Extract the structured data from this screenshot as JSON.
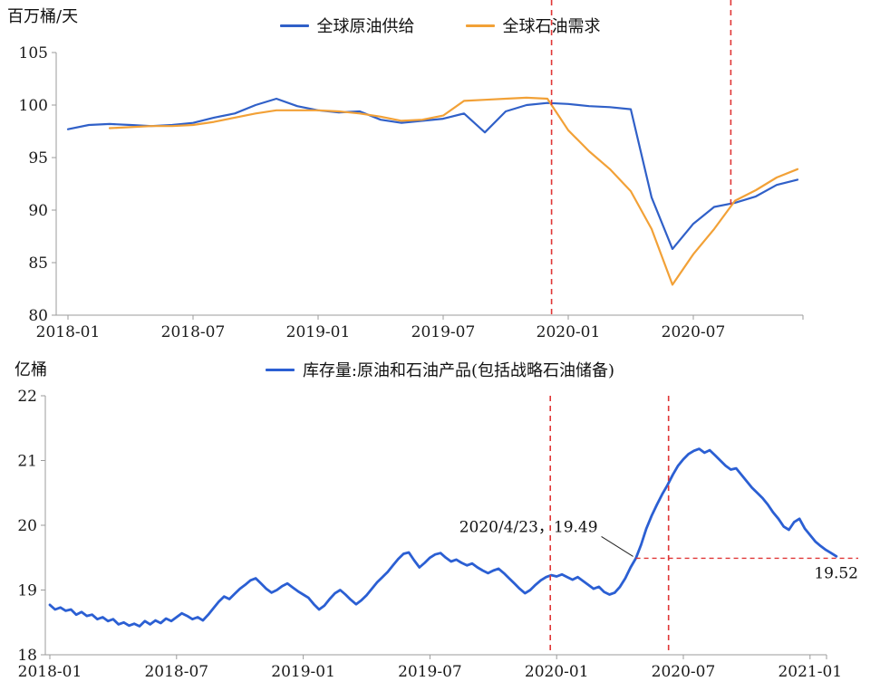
{
  "chart_data": [
    {
      "id": "top",
      "type": "line",
      "title": "",
      "ylabel": "百万桶/天",
      "x_range": [
        0,
        36
      ],
      "y_range": [
        80,
        105
      ],
      "y_ticks": [
        80,
        85,
        90,
        95,
        100,
        105
      ],
      "x_ticks": [
        {
          "m": 0,
          "label": "2018-01"
        },
        {
          "m": 6,
          "label": "2018-07"
        },
        {
          "m": 12,
          "label": "2019-01"
        },
        {
          "m": 18,
          "label": "2019-07"
        },
        {
          "m": 24,
          "label": "2020-01"
        },
        {
          "m": 30,
          "label": "2020-07"
        }
      ],
      "legend_position": "top-center",
      "grid": false,
      "marker_color": "#e03636",
      "series": [
        {
          "name": "全球原油供给",
          "color": "#3060c8",
          "width": 2.2,
          "x_start": 0,
          "x_step": 1,
          "values": [
            97.7,
            98.1,
            98.2,
            98.1,
            98.0,
            98.1,
            98.3,
            98.8,
            99.2,
            100.0,
            100.6,
            99.9,
            99.5,
            99.3,
            99.4,
            98.6,
            98.3,
            98.5,
            98.7,
            99.2,
            97.4,
            99.4,
            100.0,
            100.2,
            100.1,
            99.9,
            99.8,
            99.6,
            91.2,
            86.3,
            88.7,
            90.3,
            90.7,
            91.3,
            92.4,
            92.9
          ]
        },
        {
          "name": "全球石油需求",
          "color": "#f2a137",
          "width": 2.2,
          "x_start": 2,
          "x_step": 1,
          "values": [
            97.8,
            97.9,
            98.0,
            98.0,
            98.1,
            98.4,
            98.8,
            99.2,
            99.5,
            99.5,
            99.5,
            99.4,
            99.2,
            98.9,
            98.5,
            98.6,
            99.0,
            100.4,
            100.5,
            100.6,
            100.7,
            100.6,
            97.6,
            95.6,
            93.9,
            91.8,
            88.2,
            82.9,
            85.8,
            88.2,
            90.9,
            91.9,
            93.1,
            93.9
          ]
        }
      ],
      "markers": [
        {
          "m": 23.2,
          "span": "page",
          "to_value": null
        },
        {
          "m": 31.8,
          "span": "page",
          "to_value": 90.4
        }
      ]
    },
    {
      "id": "bottom",
      "type": "line",
      "title": "",
      "ylabel": "亿桶",
      "x_range": [
        0,
        37.5
      ],
      "y_range": [
        18,
        22
      ],
      "y_ticks": [
        18,
        19,
        20,
        21,
        22
      ],
      "x_ticks": [
        {
          "m": 0,
          "label": "2018-01"
        },
        {
          "m": 6,
          "label": "2018-07"
        },
        {
          "m": 12,
          "label": "2019-01"
        },
        {
          "m": 18,
          "label": "2019-07"
        },
        {
          "m": 24,
          "label": "2020-01"
        },
        {
          "m": 30,
          "label": "2020-07"
        },
        {
          "m": 36,
          "label": "2021-01"
        }
      ],
      "legend_position": "top-center",
      "grid": false,
      "marker_color": "#e03636",
      "series": [
        {
          "name": "库存量:原油和石油产品(包括战略石油储备)",
          "color": "#2b5fd3",
          "width": 2.8,
          "x_start": 0,
          "x_step": 0.25,
          "values": [
            18.77,
            18.7,
            18.73,
            18.68,
            18.7,
            18.62,
            18.66,
            18.6,
            18.62,
            18.55,
            18.58,
            18.52,
            18.55,
            18.47,
            18.5,
            18.45,
            18.48,
            18.44,
            18.52,
            18.47,
            18.53,
            18.49,
            18.56,
            18.52,
            18.58,
            18.64,
            18.6,
            18.55,
            18.58,
            18.53,
            18.62,
            18.72,
            18.82,
            18.9,
            18.86,
            18.94,
            19.02,
            19.08,
            19.15,
            19.18,
            19.1,
            19.02,
            18.96,
            19.0,
            19.06,
            19.1,
            19.04,
            18.98,
            18.93,
            18.88,
            18.78,
            18.7,
            18.76,
            18.86,
            18.95,
            19.0,
            18.93,
            18.85,
            18.78,
            18.84,
            18.92,
            19.02,
            19.12,
            19.2,
            19.28,
            19.38,
            19.48,
            19.56,
            19.58,
            19.46,
            19.35,
            19.42,
            19.5,
            19.55,
            19.57,
            19.5,
            19.44,
            19.47,
            19.42,
            19.38,
            19.41,
            19.35,
            19.3,
            19.26,
            19.3,
            19.33,
            19.26,
            19.18,
            19.1,
            19.02,
            18.95,
            19.0,
            19.08,
            19.15,
            19.2,
            19.23,
            19.21,
            19.24,
            19.2,
            19.16,
            19.2,
            19.14,
            19.08,
            19.02,
            19.05,
            18.97,
            18.93,
            18.96,
            19.05,
            19.18,
            19.35,
            19.49,
            19.7,
            19.95,
            20.15,
            20.32,
            20.48,
            20.62,
            20.78,
            20.92,
            21.02,
            21.1,
            21.15,
            21.18,
            21.12,
            21.16,
            21.08,
            21.0,
            20.92,
            20.86,
            20.88,
            20.78,
            20.68,
            20.58,
            20.5,
            20.42,
            20.32,
            20.2,
            20.1,
            19.98,
            19.93,
            20.05,
            20.1,
            19.95,
            19.85,
            19.75,
            19.68,
            19.62,
            19.57,
            19.52
          ]
        }
      ],
      "markers": [
        {
          "m": 23.7,
          "span": "plot",
          "to_value": null
        },
        {
          "m": 29.3,
          "span": "plot",
          "to_value": null
        }
      ],
      "annotation": {
        "label": "2020/4/23，19.49",
        "m": 27.75,
        "value": 19.49,
        "end_label": "19.52"
      }
    }
  ]
}
